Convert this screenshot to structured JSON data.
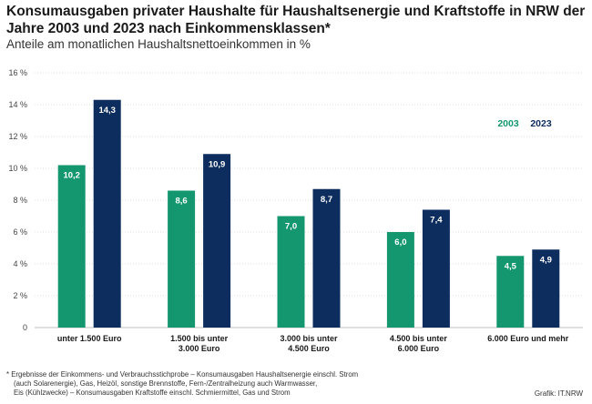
{
  "chart_data": {
    "type": "bar",
    "title": "Konsumausgaben privater Haushalte für Haushaltsenergie und Kraftstoffe in NRW der Jahre 2003 und 2023 nach Einkommensklassen*",
    "subtitle": "Anteile am monatlichen Haushaltsnettoeinkommen in %",
    "categories": [
      [
        "unter 1.500 Euro"
      ],
      [
        "1.500 bis unter",
        "3.000 Euro"
      ],
      [
        "3.000 bis unter",
        "4.500 Euro"
      ],
      [
        "4.500 bis unter",
        "6.000 Euro"
      ],
      [
        "6.000 Euro und mehr"
      ]
    ],
    "series": [
      {
        "name": "2003",
        "color": "#14976f",
        "values": [
          10.2,
          8.6,
          7.0,
          6.0,
          4.5
        ],
        "labels": [
          "10,2",
          "8,6",
          "7,0",
          "6,0",
          "4,5"
        ]
      },
      {
        "name": "2023",
        "color": "#0d2d5e",
        "values": [
          14.3,
          10.9,
          8.7,
          7.4,
          4.9
        ],
        "labels": [
          "14,3",
          "10,9",
          "8,7",
          "7,4",
          "4,9"
        ]
      }
    ],
    "ylim": [
      0,
      16
    ],
    "yticks": [
      0,
      2,
      4,
      6,
      8,
      10,
      12,
      14,
      16
    ],
    "ytick_labels": [
      "0",
      "2 %",
      "4 %",
      "6 %",
      "8 %",
      "10 %",
      "12 %",
      "14 %",
      "16 %"
    ],
    "grid": true,
    "legend_position": "top-right"
  },
  "footnote": [
    "*  Ergebnisse der Einkommens- und Verbrauchsstichprobe – Konsumausgaben Haushaltsenergie einschl. Strom",
    "(auch Solarenergie), Gas, Heizöl, sonstige Brennstoffe, Fern-/Zentralheizung auch Warmwasser,",
    "Eis (Kühlzwecke) – Konsumausgaben Kraftstoffe einschl. Schmiermittel, Gas und Strom"
  ],
  "credit": "Grafik: IT.NRW"
}
